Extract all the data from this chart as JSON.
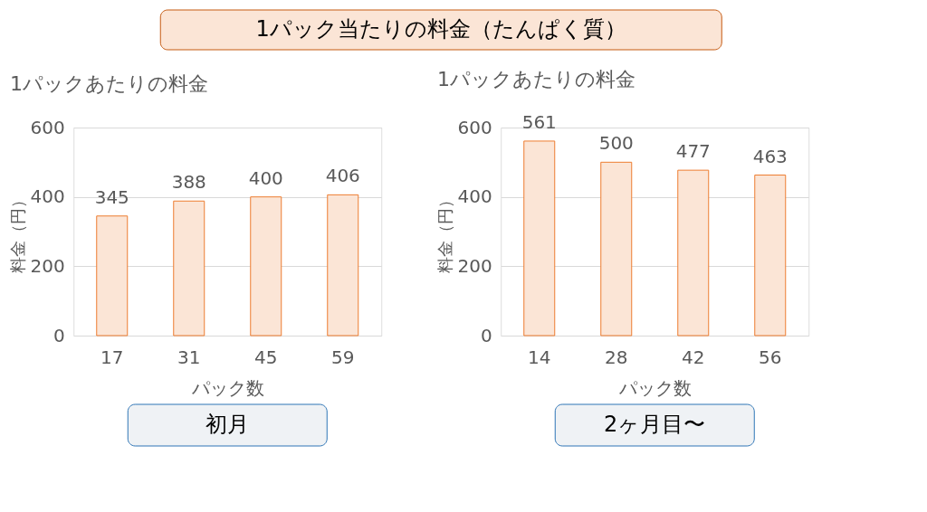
{
  "chart_data": [
    {
      "type": "other",
      "title": "1パック当たりの料金（たんぱく質）",
      "color": "#fbe5d6"
    },
    {
      "type": "bar",
      "title": "1パックあたりの料金",
      "categories": [
        "17",
        "31",
        "45",
        "59"
      ],
      "values": [
        345,
        388,
        400,
        406
      ],
      "color": "#fbe5d6",
      "ylim": [
        0,
        600
      ],
      "yticks": [
        0,
        200,
        400,
        600
      ],
      "grid": "y",
      "data_labels": true,
      "xlabel": "パック数",
      "ylabel": "料金（円）",
      "annotations": [
        "初月"
      ]
    },
    {
      "type": "bar",
      "title": "1パックあたりの料金",
      "categories": [
        "14",
        "28",
        "42",
        "56"
      ],
      "values": [
        561,
        500,
        477,
        463
      ],
      "color": "#fbe5d6",
      "ylim": [
        0,
        600
      ],
      "yticks": [
        0,
        200,
        400,
        600
      ],
      "grid": "y",
      "data_labels": true,
      "xlabel": "パック数",
      "ylabel": "料金（円）",
      "annotations": [
        "2ヶ月目〜"
      ]
    }
  ]
}
